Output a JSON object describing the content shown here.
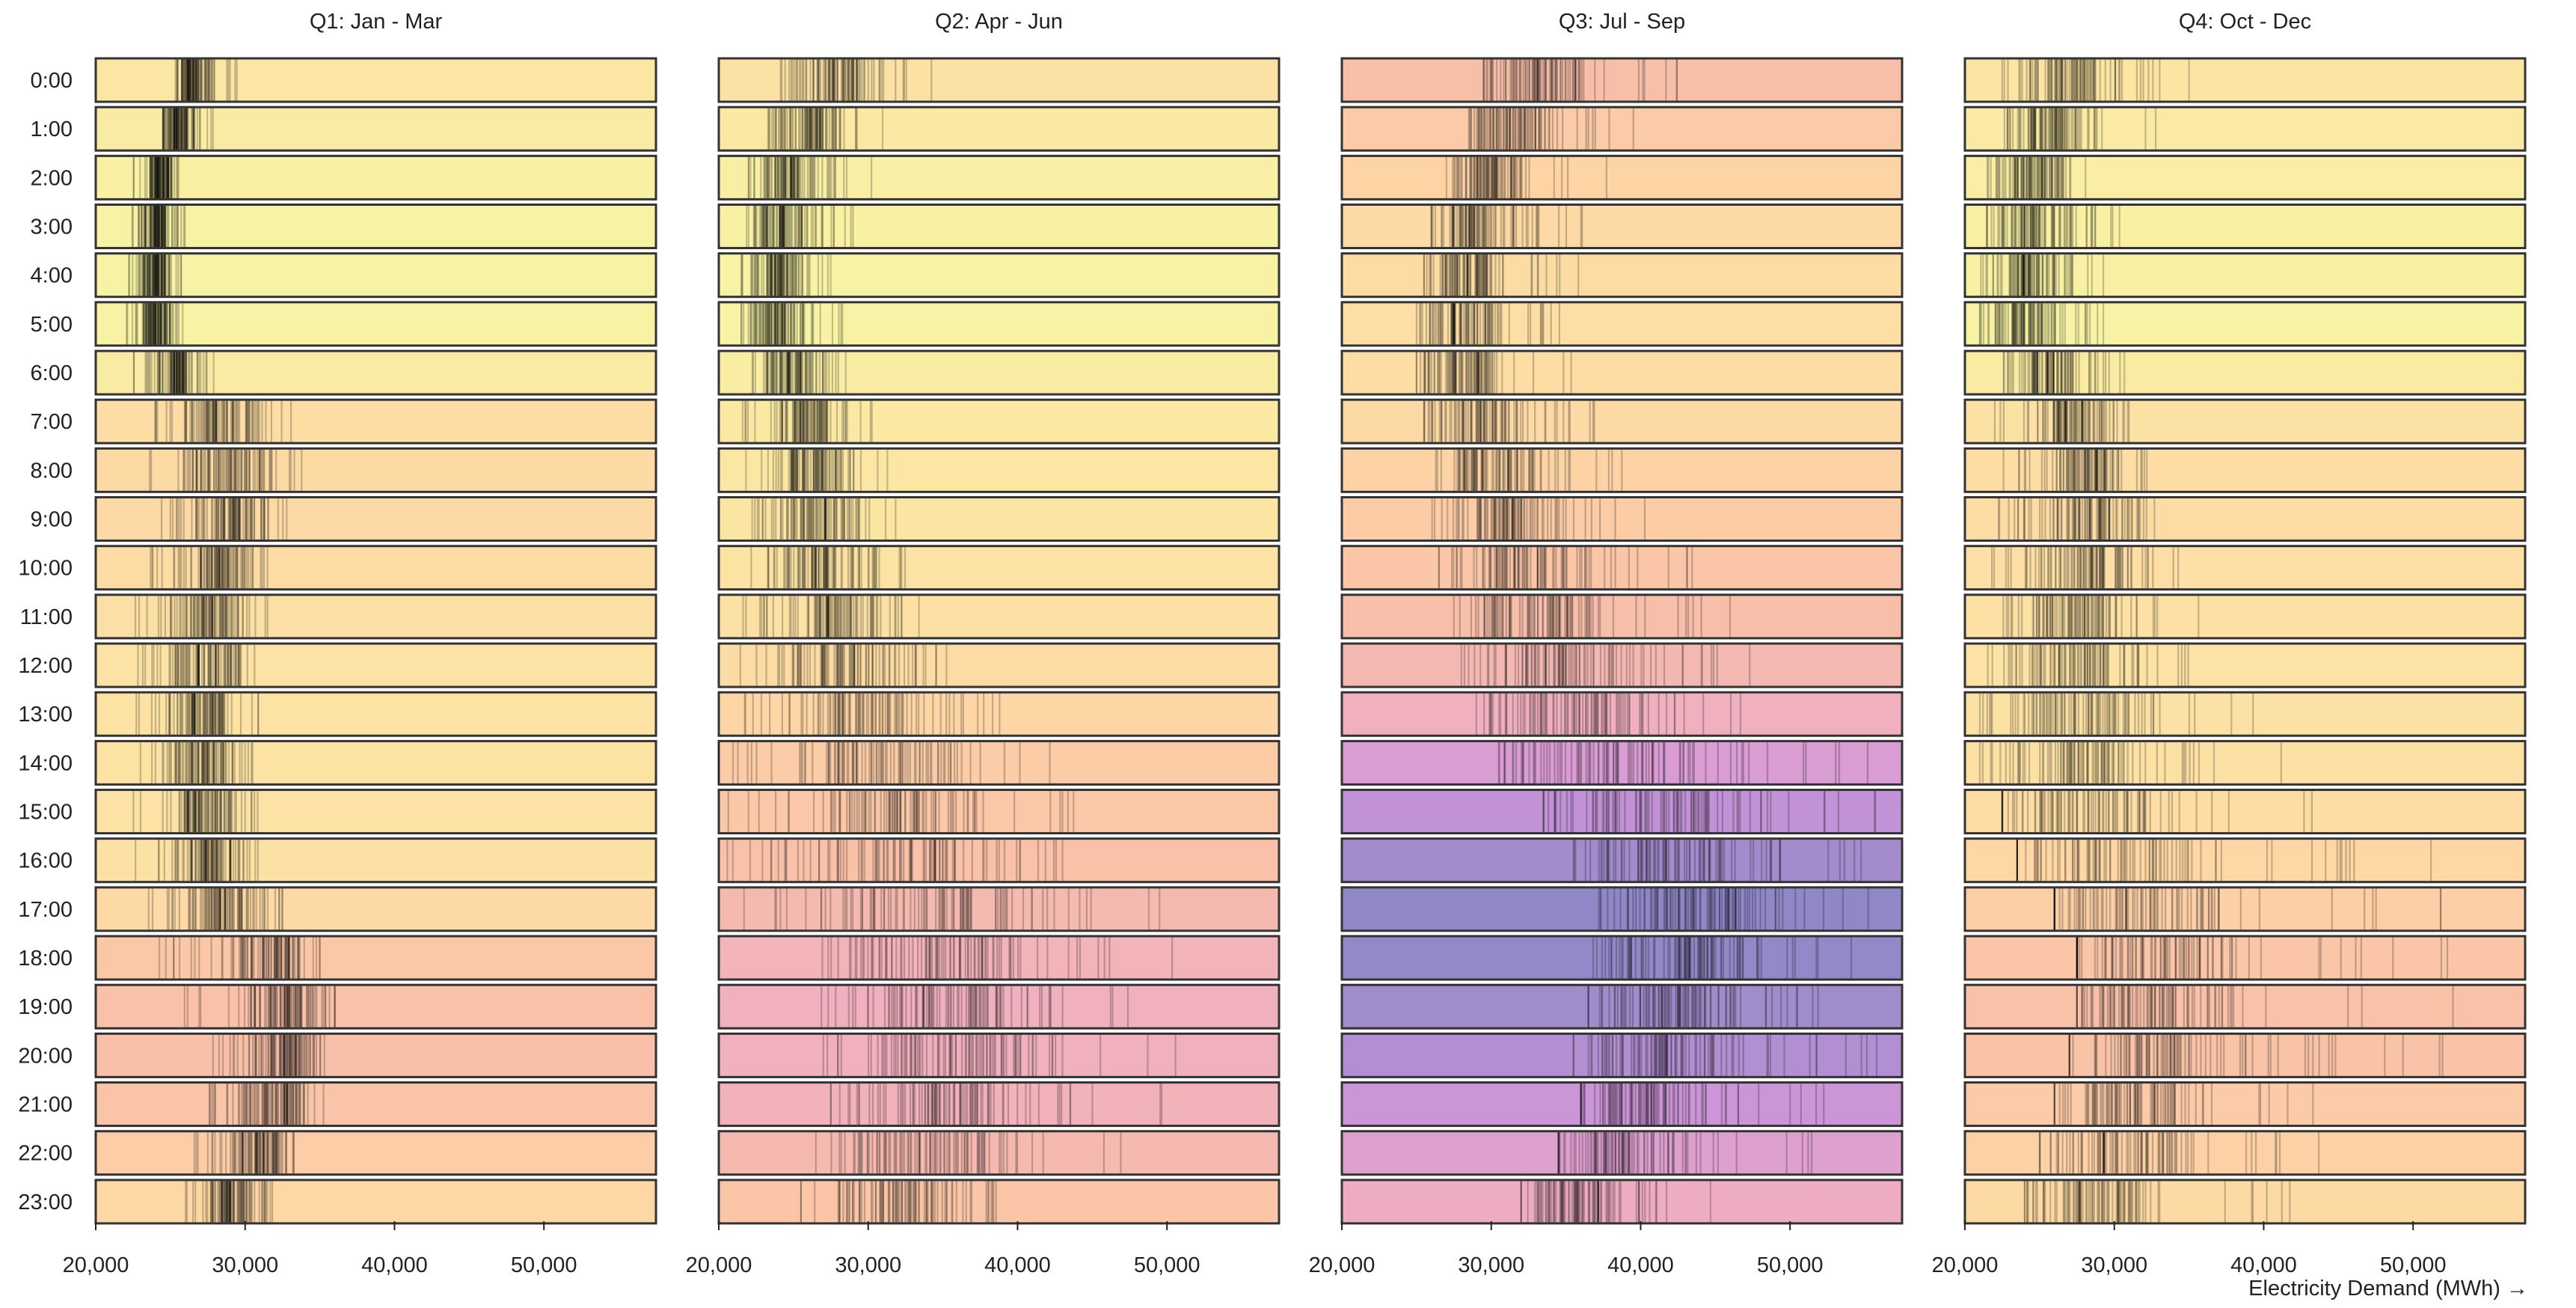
{
  "chart_data": {
    "type": "strip",
    "x_axis": {
      "label": "Electricity Demand (MWh) →",
      "domain": [
        20000,
        57500
      ],
      "ticks": [
        20000,
        30000,
        40000,
        50000
      ],
      "tick_labels": [
        "20,000",
        "30,000",
        "40,000",
        "50,000"
      ]
    },
    "hours": [
      "0:00",
      "1:00",
      "2:00",
      "3:00",
      "4:00",
      "5:00",
      "6:00",
      "7:00",
      "8:00",
      "9:00",
      "10:00",
      "11:00",
      "12:00",
      "13:00",
      "14:00",
      "15:00",
      "16:00",
      "17:00",
      "18:00",
      "19:00",
      "20:00",
      "21:00",
      "22:00",
      "23:00"
    ],
    "color_scale": {
      "domain": [
        23000,
        43000
      ],
      "stops": [
        "#f7f7a5",
        "#fbe7a3",
        "#fed5a5",
        "#f8bfa8",
        "#eeacc3",
        "#d196d9",
        "#9087c7"
      ]
    },
    "panels": [
      {
        "title": "Q1: Jan - Mar",
        "ranges": [
          [
            25000,
            29500
          ],
          [
            24500,
            28000
          ],
          [
            22500,
            26500
          ],
          [
            22000,
            26000
          ],
          [
            22000,
            26000
          ],
          [
            22000,
            26000
          ],
          [
            22500,
            28000
          ],
          [
            23500,
            33500
          ],
          [
            23000,
            34500
          ],
          [
            23000,
            33000
          ],
          [
            22500,
            31500
          ],
          [
            22500,
            31500
          ],
          [
            22500,
            31000
          ],
          [
            22500,
            31000
          ],
          [
            22000,
            30500
          ],
          [
            22500,
            31000
          ],
          [
            22000,
            31000
          ],
          [
            23000,
            32500
          ],
          [
            24000,
            35000
          ],
          [
            25500,
            36000
          ],
          [
            27500,
            36000
          ],
          [
            27500,
            35500
          ],
          [
            26500,
            33500
          ],
          [
            26000,
            32500
          ]
        ],
        "medians": [
          26500,
          25500,
          24400,
          24000,
          24000,
          24000,
          25500,
          28200,
          28700,
          28900,
          28300,
          27800,
          27300,
          27100,
          27100,
          27300,
          27500,
          28900,
          31600,
          32700,
          32900,
          32200,
          30900,
          29100
        ]
      },
      {
        "title": "Q2: Apr - Jun",
        "ranges": [
          [
            24000,
            35500
          ],
          [
            23000,
            32500
          ],
          [
            22000,
            30500
          ],
          [
            21500,
            29500
          ],
          [
            21500,
            28500
          ],
          [
            21500,
            28500
          ],
          [
            21500,
            29500
          ],
          [
            21500,
            30500
          ],
          [
            21500,
            31500
          ],
          [
            21500,
            32000
          ],
          [
            21000,
            33000
          ],
          [
            21000,
            34500
          ],
          [
            21000,
            36500
          ],
          [
            20500,
            39000
          ],
          [
            20000,
            43000
          ],
          [
            20000,
            44500
          ],
          [
            20000,
            47000
          ],
          [
            21000,
            50000
          ],
          [
            25000,
            51000
          ],
          [
            25500,
            52000
          ],
          [
            27000,
            51500
          ],
          [
            27500,
            51000
          ],
          [
            26500,
            47500
          ],
          [
            25500,
            42000
          ]
        ],
        "medians": [
          27500,
          26000,
          24700,
          24200,
          24000,
          24000,
          25000,
          26000,
          26300,
          26700,
          27000,
          27700,
          28500,
          29600,
          31000,
          31800,
          32700,
          33900,
          35000,
          35600,
          35600,
          35200,
          34000,
          32000
        ]
      },
      {
        "title": "Q3: Jul - Sep",
        "ranges": [
          [
            29500,
            43000
          ],
          [
            28500,
            40500
          ],
          [
            27000,
            38500
          ],
          [
            26000,
            36500
          ],
          [
            25500,
            36000
          ],
          [
            25000,
            35000
          ],
          [
            25000,
            35500
          ],
          [
            25500,
            37000
          ],
          [
            25500,
            39000
          ],
          [
            26000,
            40500
          ],
          [
            26500,
            43500
          ],
          [
            27500,
            46000
          ],
          [
            28000,
            48500
          ],
          [
            29000,
            51000
          ],
          [
            30500,
            56000
          ],
          [
            33500,
            56500
          ],
          [
            35500,
            57000
          ],
          [
            37000,
            57500
          ],
          [
            36500,
            57500
          ],
          [
            36500,
            57000
          ],
          [
            35500,
            56500
          ],
          [
            36000,
            55000
          ],
          [
            34500,
            52000
          ],
          [
            32000,
            46500
          ]
        ],
        "medians": [
          33000,
          31300,
          29800,
          28900,
          28400,
          28000,
          28200,
          29000,
          30000,
          31000,
          32000,
          33200,
          34300,
          35700,
          38800,
          40500,
          42000,
          43200,
          42800,
          42200,
          41300,
          40000,
          38200,
          36300
        ]
      },
      {
        "title": "Q4: Oct - Dec",
        "ranges": [
          [
            22500,
            35500
          ],
          [
            22500,
            33000
          ],
          [
            21500,
            30500
          ],
          [
            21000,
            30500
          ],
          [
            21000,
            30000
          ],
          [
            21000,
            30000
          ],
          [
            22000,
            31000
          ],
          [
            22000,
            31000
          ],
          [
            22000,
            32500
          ],
          [
            22000,
            34000
          ],
          [
            21500,
            34500
          ],
          [
            21500,
            36000
          ],
          [
            20500,
            38000
          ],
          [
            21000,
            40000
          ],
          [
            21000,
            42500
          ],
          [
            22500,
            44500
          ],
          [
            23500,
            52000
          ],
          [
            26000,
            53000
          ],
          [
            27500,
            54500
          ],
          [
            27500,
            54500
          ],
          [
            27000,
            53000
          ],
          [
            26000,
            46000
          ],
          [
            25000,
            44000
          ],
          [
            24000,
            42000
          ]
        ],
        "medians": [
          26900,
          25800,
          24800,
          24400,
          24200,
          24100,
          25600,
          27400,
          28200,
          28300,
          28000,
          27600,
          27300,
          27400,
          27700,
          28100,
          29300,
          30600,
          32000,
          32700,
          32400,
          31400,
          30200,
          28700
        ]
      }
    ]
  }
}
